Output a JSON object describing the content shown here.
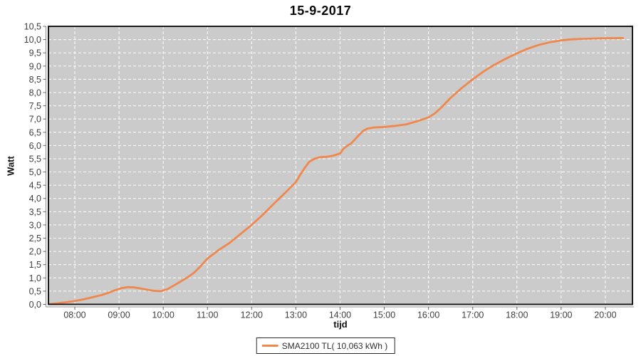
{
  "chart_data": {
    "type": "line",
    "title": "15-9-2017",
    "xlabel": "tijd",
    "ylabel": "Watt",
    "plot_background": "#cbcbcb",
    "gridline_color": "#ffffff",
    "grid": "dashed",
    "legend_position": "bottom",
    "x_axis": {
      "min": 7.404,
      "max": 20.613,
      "ticks": [
        {
          "hour": 8,
          "label": "08:00"
        },
        {
          "hour": 9,
          "label": "09:00"
        },
        {
          "hour": 10,
          "label": "10:00"
        },
        {
          "hour": 11,
          "label": "11:00"
        },
        {
          "hour": 12,
          "label": "12:00"
        },
        {
          "hour": 13,
          "label": "13:00"
        },
        {
          "hour": 14,
          "label": "14:00"
        },
        {
          "hour": 15,
          "label": "15:00"
        },
        {
          "hour": 16,
          "label": "16:00"
        },
        {
          "hour": 17,
          "label": "17:00"
        },
        {
          "hour": 18,
          "label": "18:00"
        },
        {
          "hour": 19,
          "label": "19:00"
        },
        {
          "hour": 20,
          "label": "20:00"
        }
      ]
    },
    "y_axis": {
      "min": 0,
      "max": 10.5,
      "ticks": [
        {
          "v": 0.0,
          "label": "0,0"
        },
        {
          "v": 0.5,
          "label": "0,5"
        },
        {
          "v": 1.0,
          "label": "1,0"
        },
        {
          "v": 1.5,
          "label": "1,5"
        },
        {
          "v": 2.0,
          "label": "2,0"
        },
        {
          "v": 2.5,
          "label": "2,5"
        },
        {
          "v": 3.0,
          "label": "3,0"
        },
        {
          "v": 3.5,
          "label": "3,5"
        },
        {
          "v": 4.0,
          "label": "4,0"
        },
        {
          "v": 4.5,
          "label": "4,5"
        },
        {
          "v": 5.0,
          "label": "5,0"
        },
        {
          "v": 5.5,
          "label": "5,5"
        },
        {
          "v": 6.0,
          "label": "6,0"
        },
        {
          "v": 6.5,
          "label": "6,5"
        },
        {
          "v": 7.0,
          "label": "7,0"
        },
        {
          "v": 7.5,
          "label": "7,5"
        },
        {
          "v": 8.0,
          "label": "8,0"
        },
        {
          "v": 8.5,
          "label": "8,5"
        },
        {
          "v": 9.0,
          "label": "9,0"
        },
        {
          "v": 9.5,
          "label": "9,5"
        },
        {
          "v": 10.0,
          "label": "10,0"
        },
        {
          "v": 10.5,
          "label": "10,5"
        }
      ]
    },
    "series": [
      {
        "name": "SMA2100 TL( 10,063 kWh )",
        "color": "#f0874d",
        "points": [
          [
            7.41,
            0.01
          ],
          [
            7.6,
            0.04
          ],
          [
            7.8,
            0.08
          ],
          [
            8.0,
            0.13
          ],
          [
            8.2,
            0.19
          ],
          [
            8.4,
            0.27
          ],
          [
            8.6,
            0.35
          ],
          [
            8.75,
            0.43
          ],
          [
            8.9,
            0.53
          ],
          [
            9.05,
            0.61
          ],
          [
            9.2,
            0.65
          ],
          [
            9.35,
            0.64
          ],
          [
            9.5,
            0.6
          ],
          [
            9.65,
            0.55
          ],
          [
            9.8,
            0.51
          ],
          [
            9.95,
            0.5
          ],
          [
            10.1,
            0.58
          ],
          [
            10.25,
            0.72
          ],
          [
            10.4,
            0.87
          ],
          [
            10.55,
            1.02
          ],
          [
            10.7,
            1.2
          ],
          [
            10.85,
            1.45
          ],
          [
            11.0,
            1.73
          ],
          [
            11.25,
            2.05
          ],
          [
            11.5,
            2.32
          ],
          [
            11.75,
            2.66
          ],
          [
            12.0,
            3.0
          ],
          [
            12.25,
            3.38
          ],
          [
            12.5,
            3.8
          ],
          [
            12.75,
            4.2
          ],
          [
            13.0,
            4.62
          ],
          [
            13.1,
            4.9
          ],
          [
            13.2,
            5.15
          ],
          [
            13.3,
            5.38
          ],
          [
            13.42,
            5.5
          ],
          [
            13.55,
            5.56
          ],
          [
            13.7,
            5.57
          ],
          [
            13.85,
            5.62
          ],
          [
            14.0,
            5.7
          ],
          [
            14.08,
            5.88
          ],
          [
            14.17,
            6.0
          ],
          [
            14.25,
            6.08
          ],
          [
            14.33,
            6.22
          ],
          [
            14.42,
            6.38
          ],
          [
            14.52,
            6.55
          ],
          [
            14.62,
            6.64
          ],
          [
            14.75,
            6.68
          ],
          [
            15.0,
            6.7
          ],
          [
            15.25,
            6.74
          ],
          [
            15.5,
            6.8
          ],
          [
            15.75,
            6.92
          ],
          [
            16.0,
            7.06
          ],
          [
            16.15,
            7.22
          ],
          [
            16.3,
            7.45
          ],
          [
            16.5,
            7.8
          ],
          [
            16.75,
            8.17
          ],
          [
            17.0,
            8.5
          ],
          [
            17.25,
            8.8
          ],
          [
            17.5,
            9.06
          ],
          [
            17.75,
            9.28
          ],
          [
            18.0,
            9.48
          ],
          [
            18.25,
            9.66
          ],
          [
            18.5,
            9.8
          ],
          [
            18.75,
            9.9
          ],
          [
            19.0,
            9.97
          ],
          [
            19.25,
            10.01
          ],
          [
            19.5,
            10.03
          ],
          [
            19.75,
            10.04
          ],
          [
            20.0,
            10.05
          ],
          [
            20.2,
            10.05
          ],
          [
            20.4,
            10.06
          ]
        ]
      }
    ],
    "colors": {
      "title_text": "#0a0a0a",
      "tick_label_text": "#3f3f3f",
      "plot_border": "#1a1a1a",
      "axis_line": "#8c8c8c",
      "tick_mark": "#666666"
    }
  }
}
